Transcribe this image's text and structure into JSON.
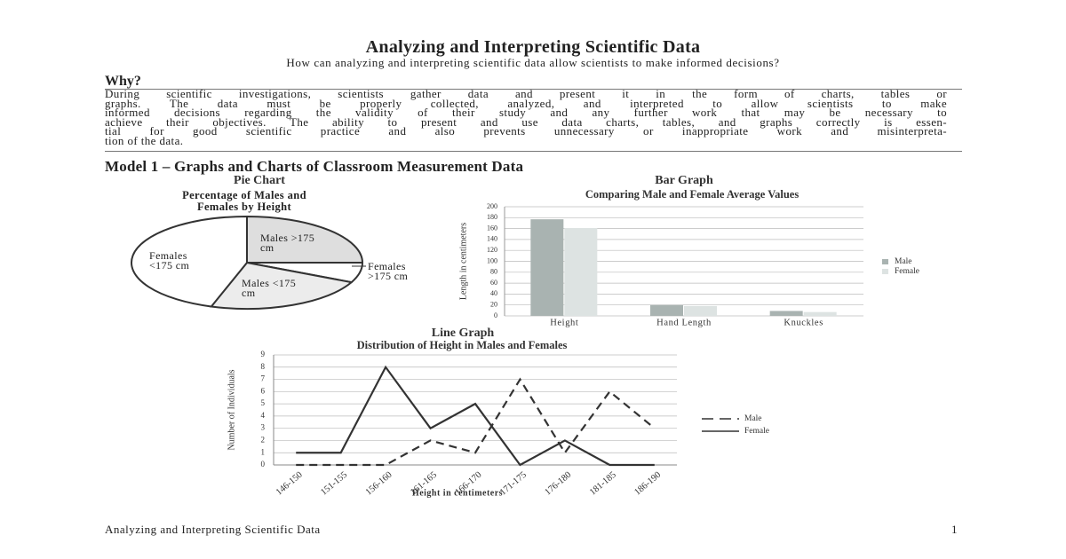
{
  "header": {
    "title": "Analyzing and Interpreting Scientific Data",
    "subtitle": "How can analyzing and interpreting scientific data allow scientists to make informed decisions?"
  },
  "why": {
    "heading": "Why?",
    "lines": [
      "During scientific investigations, scientists gather data and present it in the form of charts, tables or",
      "graphs. The data must be properly collected, analyzed, and interpreted to allow scientists to make",
      "informed decisions regarding the validity of their study and any further work that may be necessary to",
      "achieve their objectives. The ability to present and use data charts, tables, and graphs correctly is essen-",
      "tial for good scientific practice and also prevents unnecessary or inappropriate work and misinterpreta-",
      "tion of the data."
    ]
  },
  "model": {
    "heading": "Model 1 – Graphs and Charts of Classroom Measurement Data"
  },
  "chart_data": [
    {
      "type": "pie",
      "heading": "Pie Chart",
      "title": "Percentage of Males and Females by Height",
      "categories": [
        "Males >175 cm",
        "Females >175 cm",
        "Males <175 cm",
        "Females <175 cm"
      ],
      "values": [
        25,
        7,
        23,
        45
      ],
      "colors": [
        "#dedede",
        "#ffffff",
        "#ececec",
        "#ffffff"
      ]
    },
    {
      "type": "bar",
      "heading": "Bar Graph",
      "title": "Comparing Male and Female Average Values",
      "y_label": "Length in centimeters",
      "categories": [
        "Height",
        "Hand Length",
        "Knuckles"
      ],
      "series": [
        {
          "name": "Male",
          "color": "#a9b3b1",
          "values": [
            177,
            20,
            9
          ]
        },
        {
          "name": "Female",
          "color": "#dde3e2",
          "values": [
            161,
            18,
            7
          ]
        }
      ],
      "ylim": [
        0,
        200
      ],
      "yticks": [
        0,
        20,
        40,
        60,
        80,
        100,
        120,
        140,
        160,
        180,
        200
      ],
      "grid": true,
      "legend": "right"
    },
    {
      "type": "line",
      "heading": "Line Graph",
      "title": "Distribution of Height in Males and Females",
      "x_label": "Height in centimeters",
      "y_label": "Number of Individuals",
      "categories": [
        "146-150",
        "151-155",
        "156-160",
        "161-165",
        "166-170",
        "171-175",
        "176-180",
        "181-185",
        "186-190"
      ],
      "series": [
        {
          "name": "Male",
          "color": "#333333",
          "line_style": "dashed",
          "values": [
            0,
            0,
            0,
            2,
            1,
            7,
            1,
            6,
            3
          ]
        },
        {
          "name": "Female",
          "color": "#333333",
          "line_style": "solid",
          "values": [
            1,
            1,
            8,
            3,
            5,
            0,
            2,
            0,
            0
          ]
        }
      ],
      "ylim": [
        0,
        9
      ],
      "yticks": [
        0,
        1,
        2,
        3,
        4,
        5,
        6,
        7,
        8,
        9
      ],
      "grid": true,
      "legend": "right"
    }
  ],
  "footer": {
    "text": "Analyzing and Interpreting Scientific Data",
    "page": 1
  }
}
